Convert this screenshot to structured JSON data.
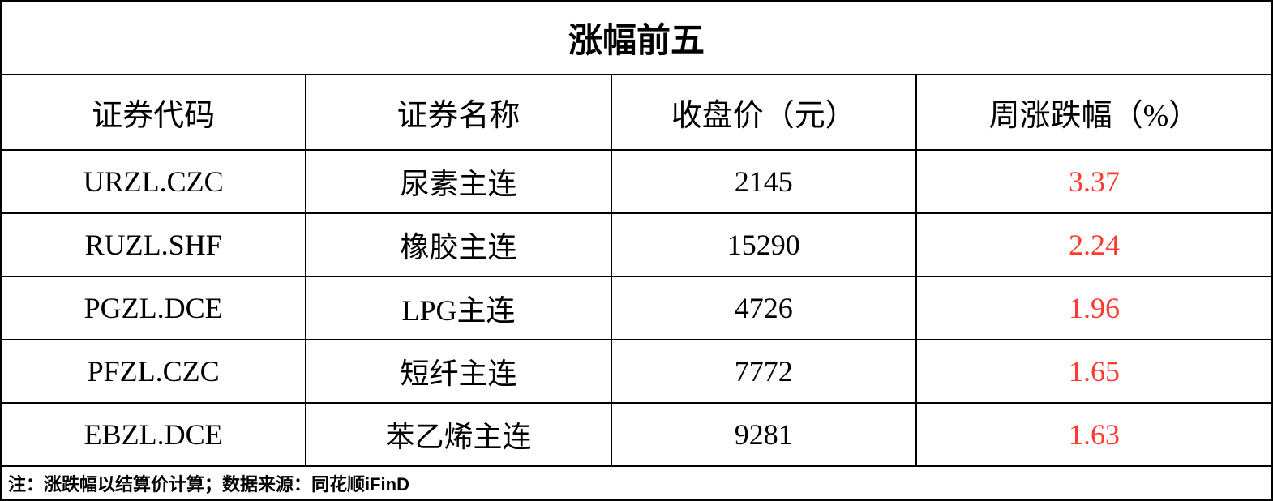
{
  "table": {
    "title": "涨幅前五",
    "title_fontsize": 42,
    "title_fontweight": "bold",
    "columns": [
      "证券代码",
      "证券名称",
      "收盘价（元）",
      "周涨跌幅（%）"
    ],
    "header_fontsize": 38,
    "rows": [
      {
        "code": "URZL.CZC",
        "name": "尿素主连",
        "close": "2145",
        "change": "3.37",
        "change_positive": true
      },
      {
        "code": "RUZL.SHF",
        "name": "橡胶主连",
        "close": "15290",
        "change": "2.24",
        "change_positive": true
      },
      {
        "code": "PGZL.DCE",
        "name": "LPG主连",
        "close": "4726",
        "change": "1.96",
        "change_positive": true
      },
      {
        "code": "PFZL.CZC",
        "name": "短纤主连",
        "close": "7772",
        "change": "1.65",
        "change_positive": true
      },
      {
        "code": "EBZL.DCE",
        "name": "苯乙烯主连",
        "close": "9281",
        "change": "1.63",
        "change_positive": true
      }
    ],
    "row_fontsize": 36,
    "footer_note": "注：涨跌幅以结算价计算；数据来源：同花顺iFinD",
    "footer_fontsize": 22,
    "column_widths_pct": [
      24,
      24,
      24,
      28
    ],
    "border_color": "#000000",
    "border_width": 2,
    "background_color": "#ffffff",
    "text_color": "#000000",
    "positive_color": "#ff3b30"
  }
}
